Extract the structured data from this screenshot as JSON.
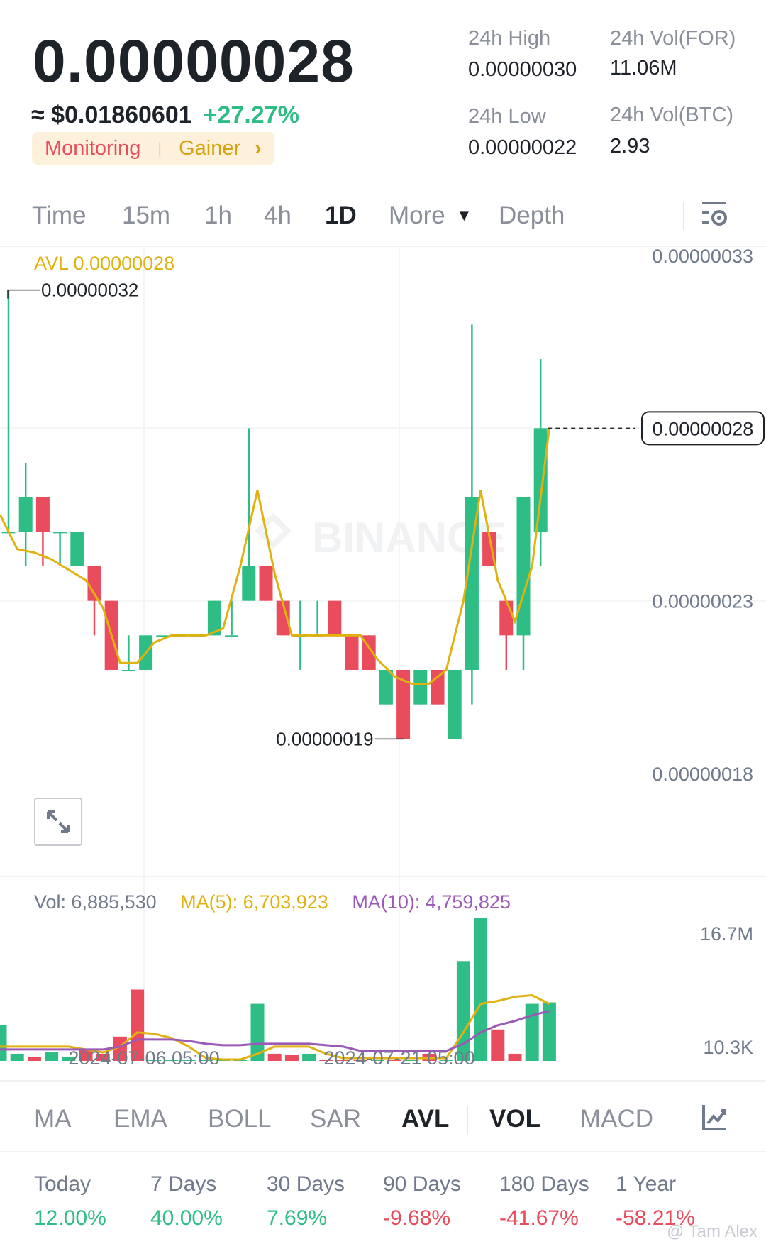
{
  "header": {
    "price": "0.00000028",
    "usd_approx": "≈ $0.01860601",
    "change_pct": "+27.27%",
    "tags": {
      "monitoring": "Monitoring",
      "gainer": "Gainer",
      "chevron": "›"
    },
    "stats": {
      "high_label": "24h High",
      "high_value": "0.00000030",
      "low_label": "24h Low",
      "low_value": "0.00000022",
      "vol_for_label": "24h Vol(FOR)",
      "vol_for_value": "11.06M",
      "vol_btc_label": "24h Vol(BTC)",
      "vol_btc_value": "2.93"
    }
  },
  "timeframes": {
    "items": [
      "Time",
      "15m",
      "1h",
      "4h",
      "1D",
      "More",
      "Depth"
    ],
    "active": "1D",
    "more_caret": "▼"
  },
  "chart": {
    "avl_label": "AVL 0.00000028",
    "watermark": "BINANCE",
    "price_ticks": [
      "0.00000033",
      "0.00000023",
      "0.00000018"
    ],
    "high_marker": "0.00000032",
    "low_marker": "0.00000019",
    "current_price_tag": "0.00000028",
    "volume_legend": {
      "vol": "Vol: 6,885,530",
      "ma5": "MA(5): 6,703,923",
      "ma10": "MA(10): 4,759,825"
    },
    "volume_ticks": [
      "16.7M",
      "10.3K"
    ],
    "date_ticks": [
      "2024-07-06 05:00",
      "2024-07-21 05:00"
    ],
    "colors": {
      "up": "#2ebd85",
      "down": "#e84c5d",
      "avl": "#e0b10f",
      "ma10": "#9b59b6"
    }
  },
  "chart_data": {
    "type": "candlestick",
    "price_axis": {
      "min": 1.8e-07,
      "max": 3.3e-07
    },
    "candles": [
      {
        "o": 2.5e-07,
        "c": 2.5e-07,
        "h": 3.2e-07,
        "l": 2.5e-07
      },
      {
        "o": 2.5e-07,
        "c": 2.6e-07,
        "h": 2.7e-07,
        "l": 2.4e-07
      },
      {
        "o": 2.6e-07,
        "c": 2.5e-07,
        "h": 2.6e-07,
        "l": 2.4e-07
      },
      {
        "o": 2.5e-07,
        "c": 2.5e-07,
        "h": 2.5e-07,
        "l": 2.4e-07
      },
      {
        "o": 2.4e-07,
        "c": 2.5e-07,
        "h": 2.5e-07,
        "l": 2.4e-07
      },
      {
        "o": 2.4e-07,
        "c": 2.3e-07,
        "h": 2.4e-07,
        "l": 2.2e-07
      },
      {
        "o": 2.3e-07,
        "c": 2.1e-07,
        "h": 2.3e-07,
        "l": 2.1e-07
      },
      {
        "o": 2.1e-07,
        "c": 2.1e-07,
        "h": 2.2e-07,
        "l": 2.1e-07
      },
      {
        "o": 2.1e-07,
        "c": 2.2e-07,
        "h": 2.2e-07,
        "l": 2.1e-07
      },
      {
        "o": 2.2e-07,
        "c": 2.2e-07,
        "h": 2.2e-07,
        "l": 2.2e-07
      },
      {
        "o": 2.2e-07,
        "c": 2.2e-07,
        "h": 2.2e-07,
        "l": 2.2e-07
      },
      {
        "o": 2.2e-07,
        "c": 2.2e-07,
        "h": 2.2e-07,
        "l": 2.2e-07
      },
      {
        "o": 2.2e-07,
        "c": 2.3e-07,
        "h": 2.3e-07,
        "l": 2.2e-07
      },
      {
        "o": 2.2e-07,
        "c": 2.2e-07,
        "h": 2.3e-07,
        "l": 2.2e-07
      },
      {
        "o": 2.3e-07,
        "c": 2.4e-07,
        "h": 2.8e-07,
        "l": 2.3e-07
      },
      {
        "o": 2.4e-07,
        "c": 2.3e-07,
        "h": 2.4e-07,
        "l": 2.3e-07
      },
      {
        "o": 2.3e-07,
        "c": 2.2e-07,
        "h": 2.3e-07,
        "l": 2.2e-07
      },
      {
        "o": 2.2e-07,
        "c": 2.2e-07,
        "h": 2.3e-07,
        "l": 2.1e-07
      },
      {
        "o": 2.2e-07,
        "c": 2.2e-07,
        "h": 2.3e-07,
        "l": 2.2e-07
      },
      {
        "o": 2.3e-07,
        "c": 2.2e-07,
        "h": 2.3e-07,
        "l": 2.2e-07
      },
      {
        "o": 2.2e-07,
        "c": 2.1e-07,
        "h": 2.2e-07,
        "l": 2.1e-07
      },
      {
        "o": 2.2e-07,
        "c": 2.1e-07,
        "h": 2.2e-07,
        "l": 2.1e-07
      },
      {
        "o": 2e-07,
        "c": 2.1e-07,
        "h": 2.1e-07,
        "l": 2e-07
      },
      {
        "o": 2.1e-07,
        "c": 1.9e-07,
        "h": 2.1e-07,
        "l": 1.9e-07
      },
      {
        "o": 2e-07,
        "c": 2.1e-07,
        "h": 2.1e-07,
        "l": 2e-07
      },
      {
        "o": 2.1e-07,
        "c": 2e-07,
        "h": 2.1e-07,
        "l": 2e-07
      },
      {
        "o": 1.9e-07,
        "c": 2.1e-07,
        "h": 2.1e-07,
        "l": 1.9e-07
      },
      {
        "o": 2.1e-07,
        "c": 2.6e-07,
        "h": 3.1e-07,
        "l": 2e-07
      },
      {
        "o": 2.5e-07,
        "c": 2.4e-07,
        "h": 2.5e-07,
        "l": 2.4e-07
      },
      {
        "o": 2.3e-07,
        "c": 2.2e-07,
        "h": 2.3e-07,
        "l": 2.1e-07
      },
      {
        "o": 2.2e-07,
        "c": 2.6e-07,
        "h": 2.6e-07,
        "l": 2.1e-07
      },
      {
        "o": 2.5e-07,
        "c": 2.8e-07,
        "h": 3e-07,
        "l": 2.4e-07
      }
    ],
    "avl": [
      2.55e-07,
      2.45e-07,
      2.44e-07,
      2.42e-07,
      2.39e-07,
      2.36e-07,
      2.28e-07,
      2.12e-07,
      2.12e-07,
      2.18e-07,
      2.2e-07,
      2.2e-07,
      2.2e-07,
      2.22e-07,
      2.4e-07,
      2.62e-07,
      2.38e-07,
      2.2e-07,
      2.2e-07,
      2.2e-07,
      2.2e-07,
      2.2e-07,
      2.13e-07,
      2.08e-07,
      2.06e-07,
      2.06e-07,
      2.1e-07,
      2.3e-07,
      2.62e-07,
      2.36e-07,
      2.24e-07,
      2.4e-07,
      2.8e-07
    ],
    "volume": [
      0.25,
      0.05,
      0.03,
      0.06,
      0.03,
      0.08,
      0.05,
      0.17,
      0.5,
      0.01,
      0.01,
      0.01,
      0.01,
      0.01,
      0.01,
      0.4,
      0.05,
      0.04,
      0.05,
      0.01,
      0.01,
      0.01,
      0.01,
      0.01,
      0.01,
      0.05,
      0.01,
      0.7,
      1.0,
      0.22,
      0.05,
      0.4,
      0.41
    ],
    "volume_up": [
      true,
      true,
      false,
      true,
      true,
      false,
      false,
      false,
      false,
      true,
      true,
      true,
      true,
      true,
      true,
      true,
      false,
      false,
      true,
      false,
      false,
      false,
      true,
      false,
      true,
      false,
      true,
      true,
      true,
      false,
      false,
      true,
      true
    ],
    "ma5": [
      0.1,
      0.1,
      0.1,
      0.1,
      0.1,
      0.08,
      0.06,
      0.1,
      0.2,
      0.19,
      0.16,
      0.1,
      0.02,
      0.01,
      0.01,
      0.05,
      0.1,
      0.1,
      0.1,
      0.05,
      0.02,
      0.02,
      0.02,
      0.02,
      0.02,
      0.02,
      0.02,
      0.2,
      0.4,
      0.42,
      0.45,
      0.46,
      0.4
    ],
    "ma10": [
      0.08,
      0.08,
      0.08,
      0.08,
      0.08,
      0.08,
      0.08,
      0.1,
      0.15,
      0.15,
      0.15,
      0.14,
      0.12,
      0.11,
      0.11,
      0.12,
      0.12,
      0.12,
      0.12,
      0.11,
      0.1,
      0.07,
      0.07,
      0.07,
      0.07,
      0.07,
      0.07,
      0.12,
      0.2,
      0.25,
      0.28,
      0.32,
      0.35
    ],
    "xlabel": "",
    "ylabel": ""
  },
  "indicators": {
    "items": [
      "MA",
      "EMA",
      "BOLL",
      "SAR",
      "AVL",
      "VOL",
      "MACD"
    ],
    "active": [
      "AVL",
      "VOL"
    ]
  },
  "performance": [
    {
      "label": "Today",
      "value": "12.00%",
      "dir": "up"
    },
    {
      "label": "7 Days",
      "value": "40.00%",
      "dir": "up"
    },
    {
      "label": "30 Days",
      "value": "7.69%",
      "dir": "up"
    },
    {
      "label": "90 Days",
      "value": "-9.68%",
      "dir": "down"
    },
    {
      "label": "180 Days",
      "value": "-41.67%",
      "dir": "down"
    },
    {
      "label": "1 Year",
      "value": "-58.21%",
      "dir": "down"
    }
  ],
  "watermark_text": "@ Tam Alex"
}
